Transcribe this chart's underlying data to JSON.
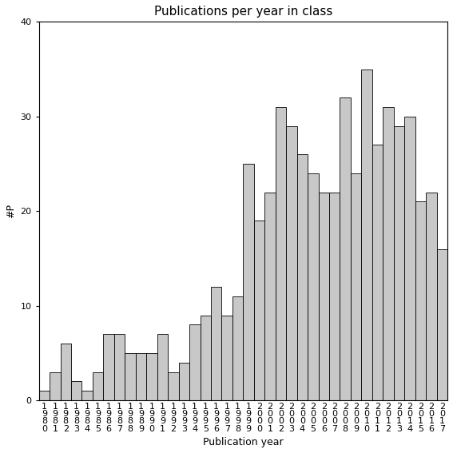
{
  "title": "Publications per year in class",
  "xlabel": "Publication year",
  "ylabel": "#P",
  "bar_color": "#c8c8c8",
  "bar_edge_color": "#000000",
  "ylim": [
    0,
    40
  ],
  "yticks": [
    0,
    10,
    20,
    30,
    40
  ],
  "categories": [
    "1\n9\n8\n0",
    "1\n9\n8\n1",
    "1\n9\n8\n2",
    "1\n9\n8\n3",
    "1\n9\n8\n4",
    "1\n9\n8\n5",
    "1\n9\n8\n6",
    "1\n9\n8\n7",
    "1\n9\n8\n8",
    "1\n9\n8\n9",
    "1\n9\n9\n0",
    "1\n9\n9\n1",
    "1\n9\n9\n2",
    "1\n9\n9\n3",
    "1\n9\n9\n4",
    "1\n9\n9\n5",
    "1\n9\n9\n6",
    "1\n9\n9\n7",
    "1\n9\n9\n8",
    "1\n9\n9\n9",
    "2\n0\n0\n0",
    "2\n0\n0\n1",
    "2\n0\n0\n2",
    "2\n0\n0\n3",
    "2\n0\n0\n4",
    "2\n0\n0\n5",
    "2\n0\n0\n6",
    "2\n0\n0\n7",
    "2\n0\n0\n8",
    "2\n0\n0\n9",
    "2\n0\n1\n0",
    "2\n0\n1\n1",
    "2\n0\n1\n2",
    "2\n0\n1\n3",
    "2\n0\n1\n4",
    "2\n0\n1\n5",
    "2\n0\n1\n6",
    "2\n0\n1\n7"
  ],
  "values": [
    1,
    3,
    6,
    2,
    1,
    3,
    7,
    7,
    5,
    5,
    5,
    7,
    3,
    4,
    8,
    9,
    12,
    9,
    11,
    25,
    19,
    22,
    31,
    29,
    26,
    24,
    22,
    22,
    32,
    24,
    35,
    27,
    31,
    29,
    30,
    21,
    22,
    16
  ],
  "title_fontsize": 11,
  "label_fontsize": 9,
  "tick_fontsize": 8
}
